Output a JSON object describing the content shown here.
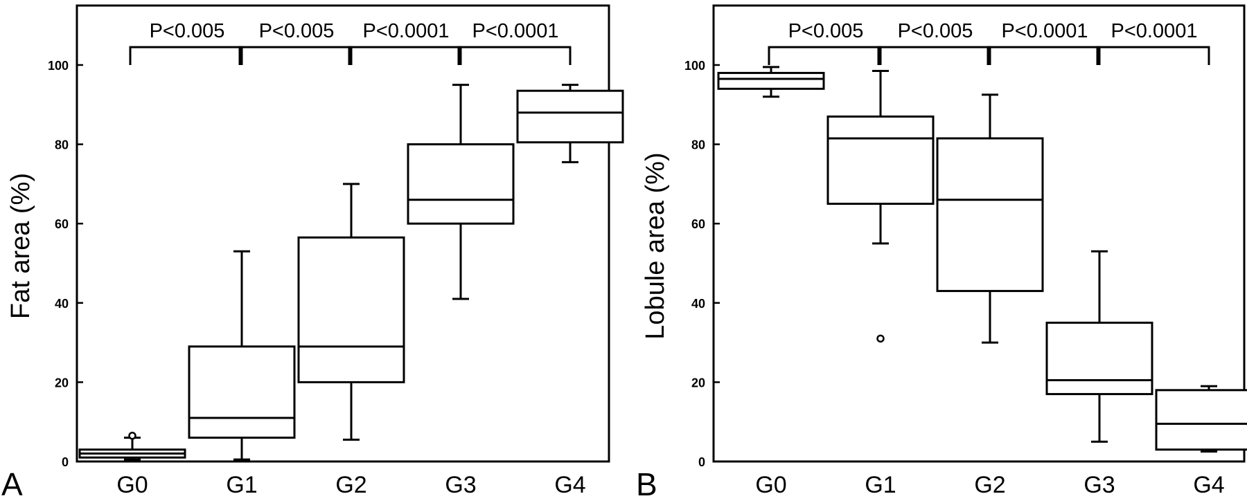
{
  "chart_data": [
    {
      "panel_label": "A",
      "type": "box",
      "ylabel": "Fat area (%)",
      "ylim": [
        0,
        115
      ],
      "yticks": [
        0,
        20,
        40,
        60,
        80,
        100
      ],
      "categories": [
        "G0",
        "G1",
        "G2",
        "G3",
        "G4"
      ],
      "boxes": [
        {
          "category": "G0",
          "whisker_low": 0.5,
          "q1": 1,
          "median": 2,
          "q3": 3,
          "whisker_high": 6,
          "outliers": [
            6.5
          ]
        },
        {
          "category": "G1",
          "whisker_low": 0.5,
          "q1": 6,
          "median": 11,
          "q3": 29,
          "whisker_high": 53,
          "outliers": []
        },
        {
          "category": "G2",
          "whisker_low": 5.5,
          "q1": 20,
          "median": 29,
          "q3": 56.5,
          "whisker_high": 70,
          "outliers": []
        },
        {
          "category": "G3",
          "whisker_low": 41,
          "q1": 60,
          "median": 66,
          "q3": 80,
          "whisker_high": 95,
          "outliers": []
        },
        {
          "category": "G4",
          "whisker_low": 75.5,
          "q1": 80.5,
          "median": 88,
          "q3": 93.5,
          "whisker_high": 95,
          "outliers": []
        }
      ],
      "comparisons": [
        {
          "from": "G0",
          "to": "G1",
          "label": "P<0.005"
        },
        {
          "from": "G1",
          "to": "G2",
          "label": "P<0.005"
        },
        {
          "from": "G2",
          "to": "G3",
          "label": "P<0.0001"
        },
        {
          "from": "G3",
          "to": "G4",
          "label": "P<0.0001"
        }
      ]
    },
    {
      "panel_label": "B",
      "type": "box",
      "ylabel": "Lobule area (%)",
      "ylim": [
        0,
        115
      ],
      "yticks": [
        0,
        20,
        40,
        60,
        80,
        100
      ],
      "categories": [
        "G0",
        "G1",
        "G2",
        "G3",
        "G4"
      ],
      "boxes": [
        {
          "category": "G0",
          "whisker_low": 92,
          "q1": 94,
          "median": 96.5,
          "q3": 98,
          "whisker_high": 99.5,
          "outliers": []
        },
        {
          "category": "G1",
          "whisker_low": 55,
          "q1": 65,
          "median": 81.5,
          "q3": 87,
          "whisker_high": 98.5,
          "outliers": [
            31
          ]
        },
        {
          "category": "G2",
          "whisker_low": 30,
          "q1": 43,
          "median": 66,
          "q3": 81.5,
          "whisker_high": 92.5,
          "outliers": []
        },
        {
          "category": "G3",
          "whisker_low": 5,
          "q1": 17,
          "median": 20.5,
          "q3": 35,
          "whisker_high": 53,
          "outliers": []
        },
        {
          "category": "G4",
          "whisker_low": 2.5,
          "q1": 3,
          "median": 9.5,
          "q3": 18,
          "whisker_high": 19,
          "outliers": []
        }
      ],
      "comparisons": [
        {
          "from": "G0",
          "to": "G1",
          "label": "P<0.005"
        },
        {
          "from": "G1",
          "to": "G2",
          "label": "P<0.005"
        },
        {
          "from": "G2",
          "to": "G3",
          "label": "P<0.0001"
        },
        {
          "from": "G3",
          "to": "G4",
          "label": "P<0.0001"
        }
      ]
    }
  ]
}
